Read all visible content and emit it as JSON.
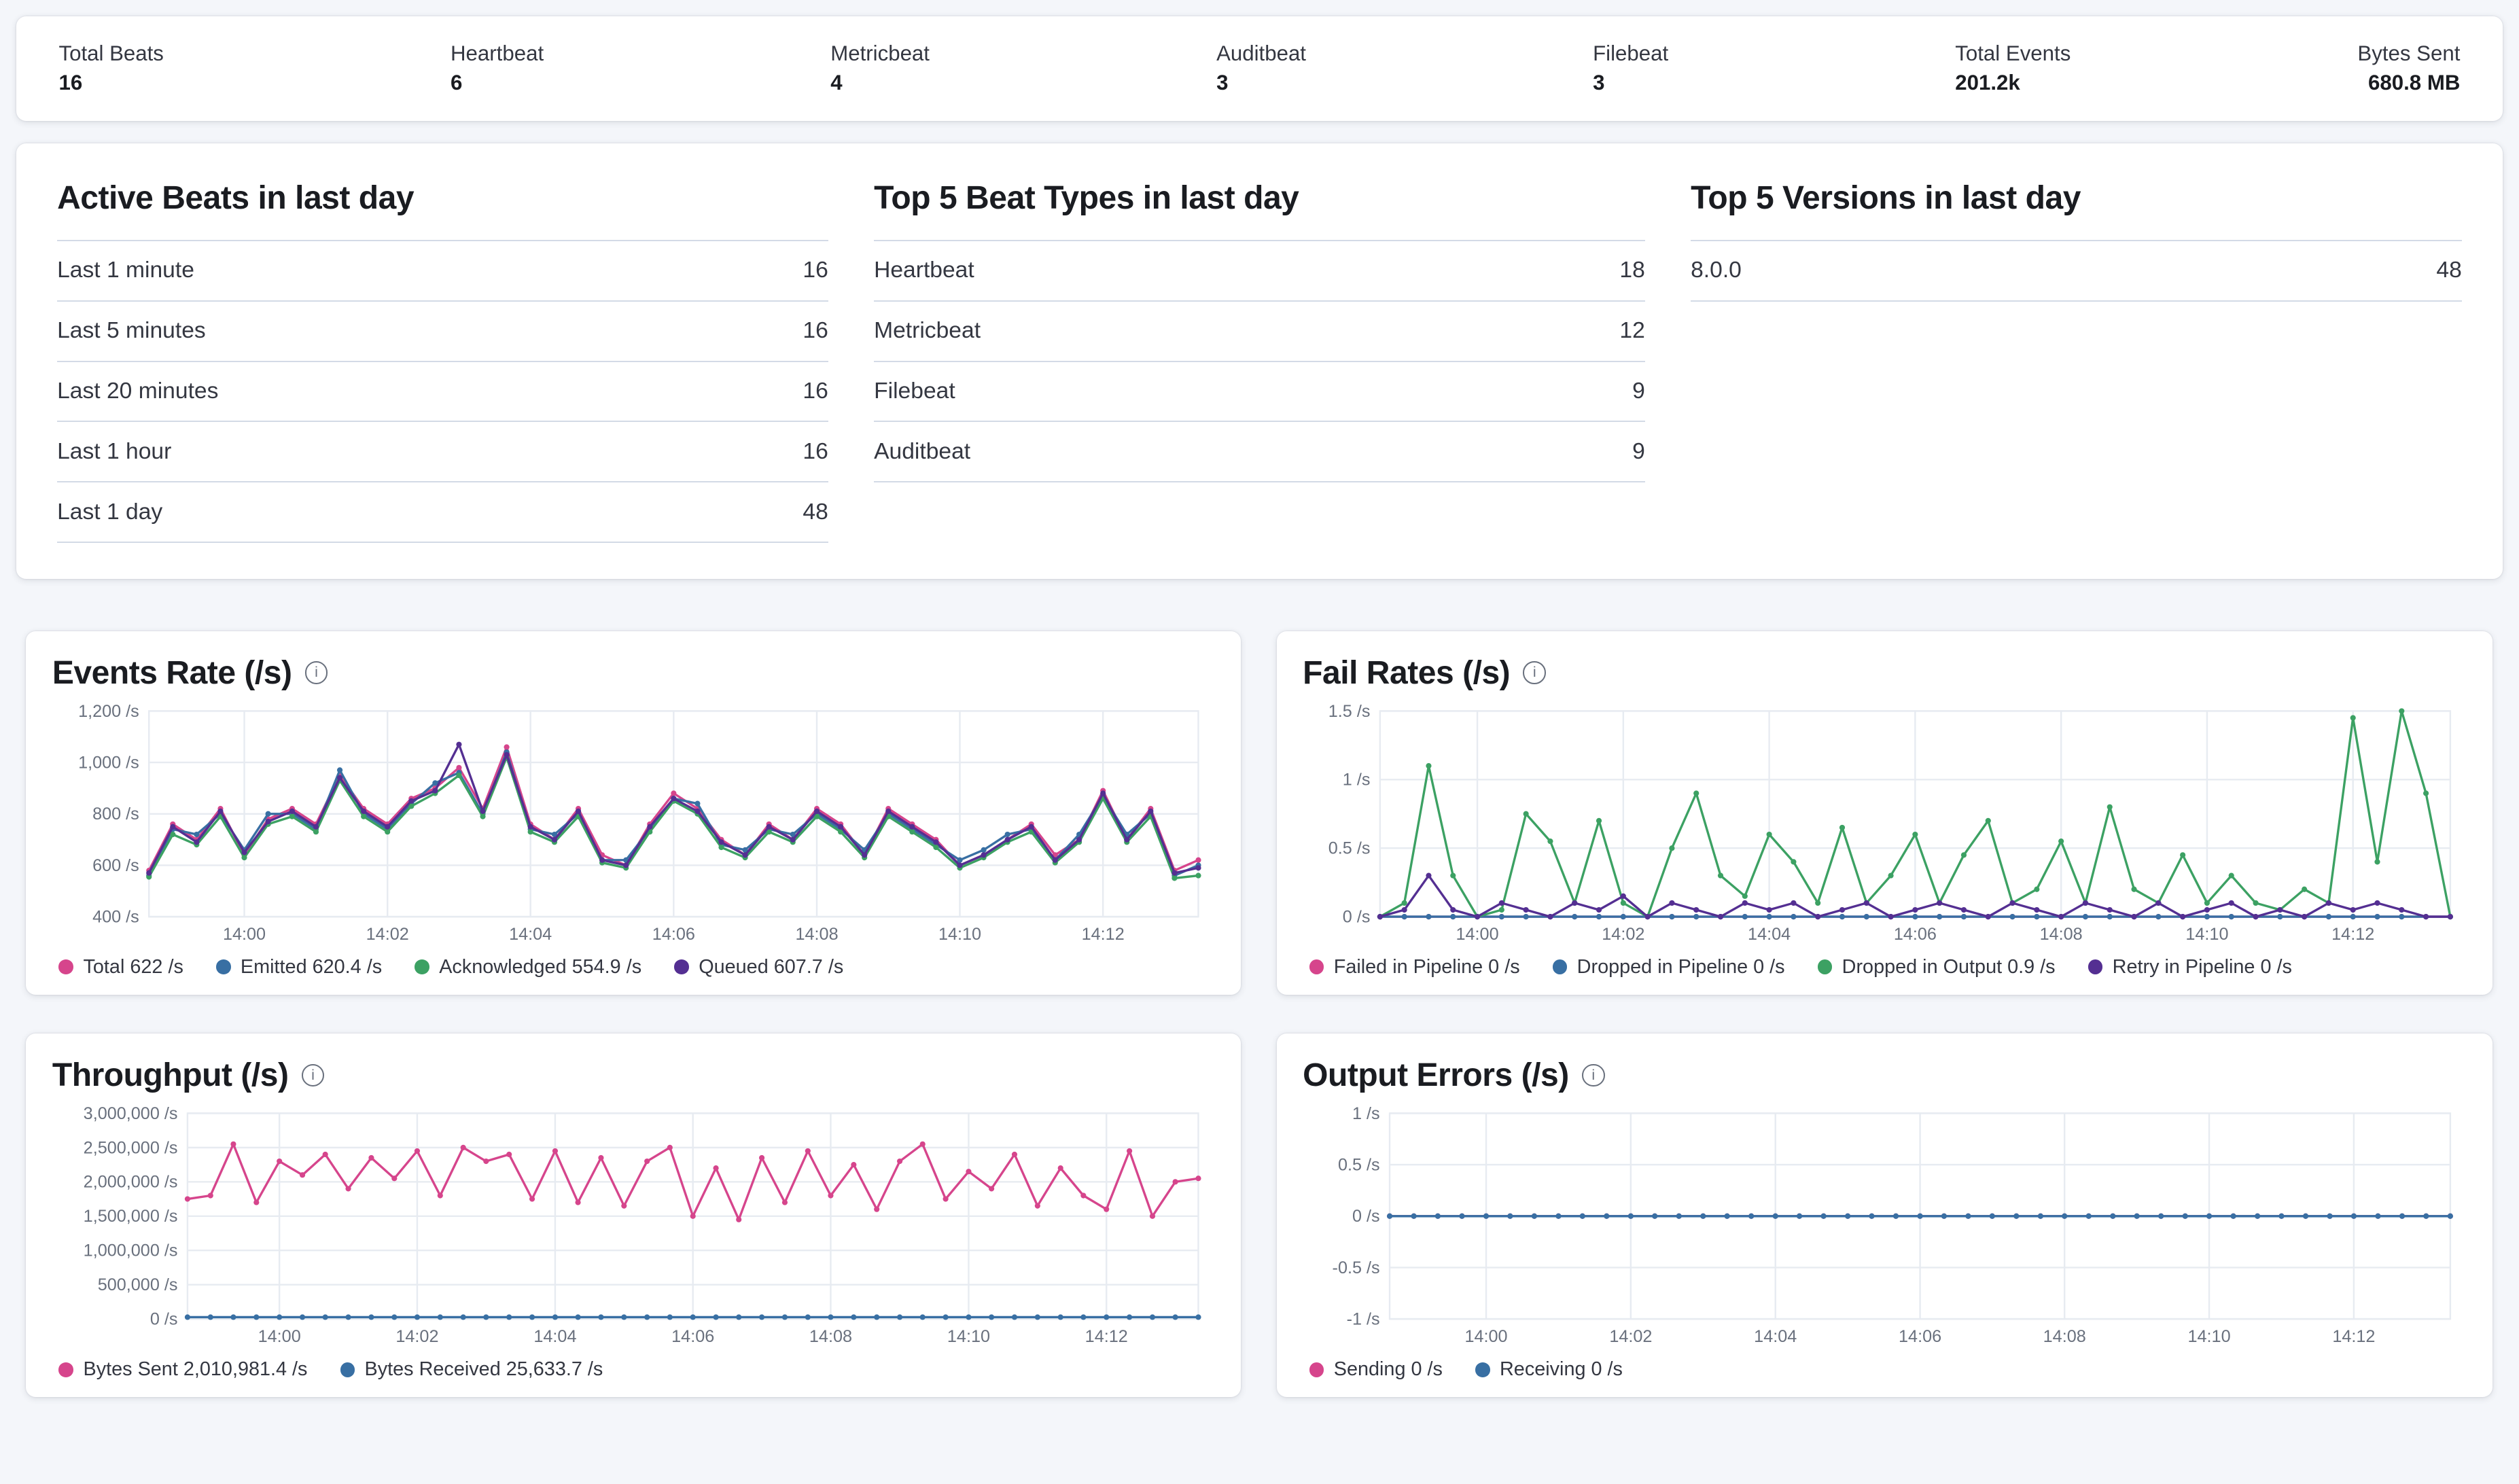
{
  "stats": {
    "items": [
      {
        "label": "Total Beats",
        "value": "16"
      },
      {
        "label": "Heartbeat",
        "value": "6"
      },
      {
        "label": "Metricbeat",
        "value": "4"
      },
      {
        "label": "Auditbeat",
        "value": "3"
      },
      {
        "label": "Filebeat",
        "value": "3"
      },
      {
        "label": "Total Events",
        "value": "201.2k"
      },
      {
        "label": "Bytes Sent",
        "value": "680.8 MB"
      }
    ]
  },
  "tables": [
    {
      "title": "Active Beats in last day",
      "rows": [
        {
          "label": "Last 1 minute",
          "value": "16"
        },
        {
          "label": "Last 5 minutes",
          "value": "16"
        },
        {
          "label": "Last 20 minutes",
          "value": "16"
        },
        {
          "label": "Last 1 hour",
          "value": "16"
        },
        {
          "label": "Last 1 day",
          "value": "48"
        }
      ]
    },
    {
      "title": "Top 5 Beat Types in last day",
      "rows": [
        {
          "label": "Heartbeat",
          "value": "18"
        },
        {
          "label": "Metricbeat",
          "value": "12"
        },
        {
          "label": "Filebeat",
          "value": "9"
        },
        {
          "label": "Auditbeat",
          "value": "9"
        }
      ]
    },
    {
      "title": "Top 5 Versions in last day",
      "rows": [
        {
          "label": "8.0.0",
          "value": "48"
        }
      ]
    }
  ],
  "icons": {
    "info": "i"
  },
  "colors": {
    "pink": "#d6458c",
    "blue": "#386fa3",
    "green": "#3ca163",
    "purple": "#542f92",
    "grid": "#e7ebf1",
    "axis_text": "#69707d"
  },
  "chart_data": [
    {
      "type": "line",
      "title": "Events Rate (/s)",
      "ylim": [
        400,
        1200
      ],
      "y_ticks": [
        {
          "v": 1200,
          "label": "1,200 /s"
        },
        {
          "v": 1000,
          "label": "1,000 /s"
        },
        {
          "v": 800,
          "label": "800 /s"
        },
        {
          "v": 600,
          "label": "600 /s"
        },
        {
          "v": 400,
          "label": "400 /s"
        }
      ],
      "x_ticks": [
        {
          "i": 4,
          "label": "14:00"
        },
        {
          "i": 10,
          "label": "14:02"
        },
        {
          "i": 16,
          "label": "14:04"
        },
        {
          "i": 22,
          "label": "14:06"
        },
        {
          "i": 28,
          "label": "14:08"
        },
        {
          "i": 34,
          "label": "14:10"
        },
        {
          "i": 40,
          "label": "14:12"
        }
      ],
      "series": [
        {
          "name": "Total",
          "legend": "Total 622 /s",
          "color": "#d6458c",
          "values": [
            580,
            760,
            700,
            820,
            640,
            780,
            820,
            760,
            950,
            820,
            760,
            860,
            900,
            980,
            820,
            1060,
            760,
            700,
            820,
            640,
            600,
            760,
            880,
            820,
            700,
            640,
            760,
            700,
            820,
            760,
            640,
            820,
            760,
            700,
            600,
            640,
            700,
            760,
            640,
            700,
            890,
            700,
            820,
            580,
            620
          ]
        },
        {
          "name": "Emitted",
          "legend": "Emitted 620.4 /s",
          "color": "#386fa3",
          "values": [
            560,
            740,
            720,
            800,
            660,
            800,
            800,
            740,
            970,
            800,
            740,
            840,
            920,
            960,
            800,
            1040,
            740,
            720,
            800,
            620,
            620,
            740,
            860,
            840,
            680,
            660,
            740,
            720,
            800,
            740,
            660,
            800,
            740,
            680,
            620,
            660,
            720,
            740,
            620,
            720,
            870,
            720,
            800,
            560,
            600
          ]
        },
        {
          "name": "Acknowledged",
          "legend": "Acknowledged 554.9 /s",
          "color": "#3ca163",
          "values": [
            555,
            720,
            680,
            790,
            630,
            760,
            790,
            730,
            930,
            790,
            730,
            830,
            880,
            950,
            790,
            1020,
            730,
            690,
            790,
            610,
            590,
            730,
            850,
            800,
            670,
            630,
            730,
            690,
            790,
            730,
            630,
            790,
            730,
            670,
            590,
            630,
            690,
            730,
            610,
            690,
            860,
            690,
            790,
            550,
            560
          ]
        },
        {
          "name": "Queued",
          "legend": "Queued 607.7 /s",
          "color": "#542f92",
          "values": [
            570,
            750,
            690,
            810,
            650,
            770,
            810,
            750,
            940,
            810,
            750,
            850,
            890,
            1070,
            810,
            1030,
            750,
            700,
            810,
            620,
            600,
            750,
            860,
            810,
            690,
            640,
            750,
            700,
            810,
            750,
            640,
            810,
            750,
            690,
            600,
            640,
            700,
            750,
            620,
            700,
            880,
            700,
            810,
            570,
            590
          ]
        }
      ]
    },
    {
      "type": "line",
      "title": "Fail Rates (/s)",
      "ylim": [
        0,
        1.5
      ],
      "y_ticks": [
        {
          "v": 1.5,
          "label": "1.5 /s"
        },
        {
          "v": 1,
          "label": "1 /s"
        },
        {
          "v": 0.5,
          "label": "0.5 /s"
        },
        {
          "v": 0,
          "label": "0 /s"
        }
      ],
      "x_ticks": [
        {
          "i": 4,
          "label": "14:00"
        },
        {
          "i": 10,
          "label": "14:02"
        },
        {
          "i": 16,
          "label": "14:04"
        },
        {
          "i": 22,
          "label": "14:06"
        },
        {
          "i": 28,
          "label": "14:08"
        },
        {
          "i": 34,
          "label": "14:10"
        },
        {
          "i": 40,
          "label": "14:12"
        }
      ],
      "series": [
        {
          "name": "Failed in Pipeline",
          "legend": "Failed in Pipeline 0 /s",
          "color": "#d6458c",
          "values": [
            0,
            0,
            0,
            0,
            0,
            0,
            0,
            0,
            0,
            0,
            0,
            0,
            0,
            0,
            0,
            0,
            0,
            0,
            0,
            0,
            0,
            0,
            0,
            0,
            0,
            0,
            0,
            0,
            0,
            0,
            0,
            0,
            0,
            0,
            0,
            0,
            0,
            0,
            0,
            0,
            0,
            0,
            0,
            0,
            0
          ]
        },
        {
          "name": "Dropped in Pipeline",
          "legend": "Dropped in Pipeline 0 /s",
          "color": "#386fa3",
          "values": [
            0,
            0,
            0,
            0,
            0,
            0,
            0,
            0,
            0,
            0,
            0,
            0,
            0,
            0,
            0,
            0,
            0,
            0,
            0,
            0,
            0,
            0,
            0,
            0,
            0,
            0,
            0,
            0,
            0,
            0,
            0,
            0,
            0,
            0,
            0,
            0,
            0,
            0,
            0,
            0,
            0,
            0,
            0,
            0,
            0
          ]
        },
        {
          "name": "Dropped in Output",
          "legend": "Dropped in Output 0.9 /s",
          "color": "#3ca163",
          "values": [
            0,
            0.1,
            1.1,
            0.3,
            0,
            0.05,
            0.75,
            0.55,
            0.1,
            0.7,
            0.1,
            0,
            0.5,
            0.9,
            0.3,
            0.15,
            0.6,
            0.4,
            0.1,
            0.65,
            0.1,
            0.3,
            0.6,
            0.1,
            0.45,
            0.7,
            0.1,
            0.2,
            0.55,
            0.1,
            0.8,
            0.2,
            0.1,
            0.45,
            0.1,
            0.3,
            0.1,
            0.05,
            0.2,
            0.1,
            1.45,
            0.4,
            1.5,
            0.9,
            0
          ]
        },
        {
          "name": "Retry in Pipeline",
          "legend": "Retry in Pipeline 0 /s",
          "color": "#542f92",
          "values": [
            0,
            0.05,
            0.3,
            0.05,
            0,
            0.1,
            0.05,
            0,
            0.1,
            0.05,
            0.15,
            0,
            0.1,
            0.05,
            0,
            0.1,
            0.05,
            0.1,
            0,
            0.05,
            0.1,
            0,
            0.05,
            0.1,
            0.05,
            0,
            0.1,
            0.05,
            0,
            0.1,
            0.05,
            0,
            0.1,
            0,
            0.05,
            0.1,
            0,
            0.05,
            0,
            0.1,
            0.05,
            0.1,
            0.05,
            0,
            0
          ]
        }
      ]
    },
    {
      "type": "line",
      "title": "Throughput (/s)",
      "ylim": [
        0,
        3000000
      ],
      "y_ticks": [
        {
          "v": 3000000,
          "label": "3,000,000 /s"
        },
        {
          "v": 2500000,
          "label": "2,500,000 /s"
        },
        {
          "v": 2000000,
          "label": "2,000,000 /s"
        },
        {
          "v": 1500000,
          "label": "1,500,000 /s"
        },
        {
          "v": 1000000,
          "label": "1,000,000 /s"
        },
        {
          "v": 500000,
          "label": "500,000 /s"
        },
        {
          "v": 0,
          "label": "0 /s"
        }
      ],
      "x_ticks": [
        {
          "i": 4,
          "label": "14:00"
        },
        {
          "i": 10,
          "label": "14:02"
        },
        {
          "i": 16,
          "label": "14:04"
        },
        {
          "i": 22,
          "label": "14:06"
        },
        {
          "i": 28,
          "label": "14:08"
        },
        {
          "i": 34,
          "label": "14:10"
        },
        {
          "i": 40,
          "label": "14:12"
        }
      ],
      "series": [
        {
          "name": "Bytes Sent",
          "legend": "Bytes Sent 2,010,981.4 /s",
          "color": "#d6458c",
          "values": [
            1750000,
            1800000,
            2550000,
            1700000,
            2300000,
            2100000,
            2400000,
            1900000,
            2350000,
            2050000,
            2450000,
            1800000,
            2500000,
            2300000,
            2400000,
            1750000,
            2450000,
            1700000,
            2350000,
            1650000,
            2300000,
            2500000,
            1500000,
            2200000,
            1450000,
            2350000,
            1700000,
            2450000,
            1800000,
            2250000,
            1600000,
            2300000,
            2550000,
            1750000,
            2150000,
            1900000,
            2400000,
            1650000,
            2200000,
            1800000,
            1600000,
            2450000,
            1500000,
            2000000,
            2050000
          ]
        },
        {
          "name": "Bytes Received",
          "legend": "Bytes Received 25,633.7 /s",
          "color": "#386fa3",
          "values": [
            25000,
            25000,
            25000,
            25000,
            25000,
            25000,
            25000,
            25000,
            25000,
            25000,
            25000,
            25000,
            25000,
            25000,
            25000,
            25000,
            25000,
            25000,
            25000,
            25000,
            25000,
            25000,
            25000,
            25000,
            25000,
            25000,
            25000,
            25000,
            25000,
            25000,
            25000,
            25000,
            25000,
            25000,
            25000,
            25000,
            25000,
            25000,
            25000,
            25000,
            25000,
            25000,
            25000,
            25000,
            25000
          ]
        }
      ]
    },
    {
      "type": "line",
      "title": "Output Errors (/s)",
      "ylim": [
        -1,
        1
      ],
      "y_ticks": [
        {
          "v": 1,
          "label": "1 /s"
        },
        {
          "v": 0.5,
          "label": "0.5 /s"
        },
        {
          "v": 0,
          "label": "0 /s"
        },
        {
          "v": -0.5,
          "label": "-0.5 /s"
        },
        {
          "v": -1,
          "label": "-1 /s"
        }
      ],
      "x_ticks": [
        {
          "i": 4,
          "label": "14:00"
        },
        {
          "i": 10,
          "label": "14:02"
        },
        {
          "i": 16,
          "label": "14:04"
        },
        {
          "i": 22,
          "label": "14:06"
        },
        {
          "i": 28,
          "label": "14:08"
        },
        {
          "i": 34,
          "label": "14:10"
        },
        {
          "i": 40,
          "label": "14:12"
        }
      ],
      "series": [
        {
          "name": "Sending",
          "legend": "Sending 0 /s",
          "color": "#d6458c",
          "values": [
            0,
            0,
            0,
            0,
            0,
            0,
            0,
            0,
            0,
            0,
            0,
            0,
            0,
            0,
            0,
            0,
            0,
            0,
            0,
            0,
            0,
            0,
            0,
            0,
            0,
            0,
            0,
            0,
            0,
            0,
            0,
            0,
            0,
            0,
            0,
            0,
            0,
            0,
            0,
            0,
            0,
            0,
            0,
            0,
            0
          ]
        },
        {
          "name": "Receiving",
          "legend": "Receiving 0 /s",
          "color": "#386fa3",
          "values": [
            0,
            0,
            0,
            0,
            0,
            0,
            0,
            0,
            0,
            0,
            0,
            0,
            0,
            0,
            0,
            0,
            0,
            0,
            0,
            0,
            0,
            0,
            0,
            0,
            0,
            0,
            0,
            0,
            0,
            0,
            0,
            0,
            0,
            0,
            0,
            0,
            0,
            0,
            0,
            0,
            0,
            0,
            0,
            0,
            0
          ]
        }
      ]
    }
  ]
}
